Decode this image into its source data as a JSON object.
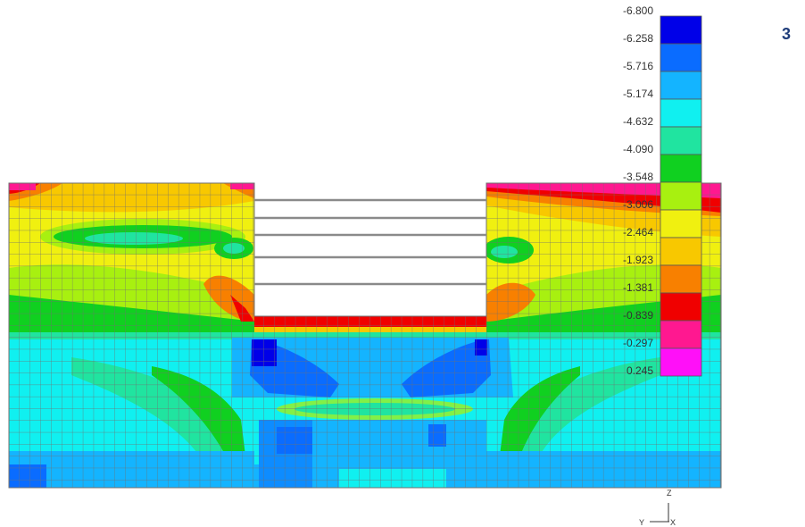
{
  "panel_number": "3",
  "legend": {
    "values": [
      "-6.800",
      "-6.258",
      "-5.716",
      "-5.174",
      "-4.632",
      "-4.090",
      "-3.548",
      "-3.006",
      "-2.464",
      "-1.923",
      "-1.381",
      "-0.839",
      "-0.297",
      "0.245"
    ],
    "colors": [
      "#0000e8",
      "#0a6cff",
      "#14b4ff",
      "#10f0f0",
      "#20e4a0",
      "#10d020",
      "#a8f010",
      "#f0f010",
      "#f8c800",
      "#f88000",
      "#f00000",
      "#ff1890",
      "#ff10f8"
    ]
  },
  "axes": {
    "vertical": "Z",
    "horizontal": "Y",
    "out_of_plane": "X"
  },
  "colors": {
    "mesh_lines": "#7f7f7f",
    "strut_lines": "#8a8a8a"
  }
}
